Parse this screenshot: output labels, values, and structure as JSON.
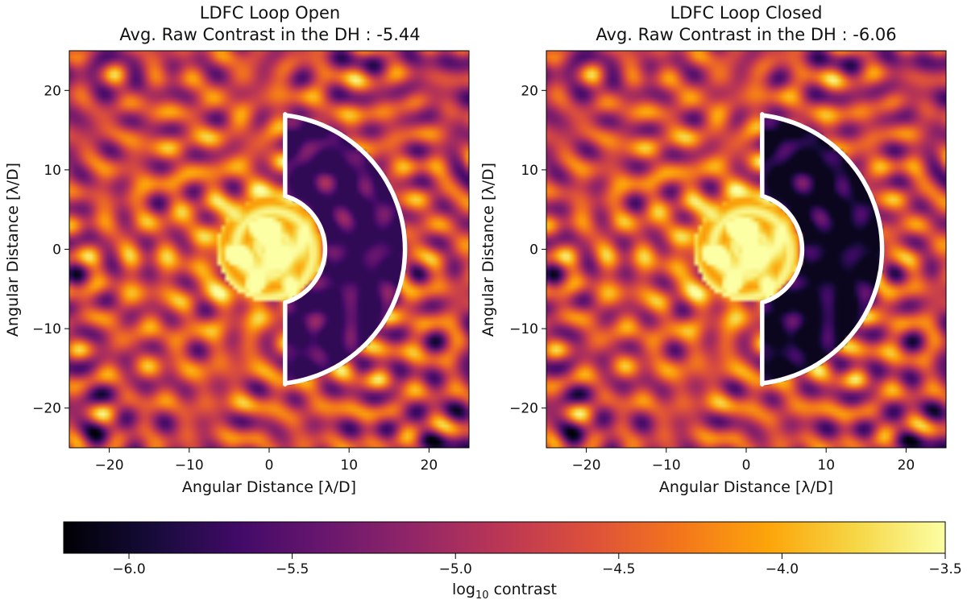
{
  "chart_data": [
    {
      "type": "heatmap",
      "title_line1": "LDFC Loop Open",
      "title_line2": "Avg. Raw Contrast in the DH : -5.44",
      "avg_contrast": -5.44,
      "xlabel": "Angular Distance [λ/D]",
      "ylabel": "Angular Distance [λ/D]",
      "xlim": [
        -25,
        25
      ],
      "ylim": [
        -25,
        25
      ],
      "xticks": [
        -20,
        -10,
        0,
        10,
        20
      ],
      "yticks": [
        -20,
        -10,
        0,
        10,
        20
      ],
      "tick_labels": [
        "−20",
        "−10",
        "0",
        "10",
        "20"
      ],
      "dark_hole": {
        "outer_radius": 17,
        "inner_radius": 7,
        "x_min": 2,
        "y_extent": 17,
        "side": "right"
      },
      "dark_hole_level": 0.16,
      "seed": 11
    },
    {
      "type": "heatmap",
      "title_line1": "LDFC Loop Closed",
      "title_line2": "Avg. Raw Contrast in the DH : -6.06",
      "avg_contrast": -6.06,
      "xlabel": "Angular Distance [λ/D]",
      "ylabel": "Angular Distance [λ/D]",
      "xlim": [
        -25,
        25
      ],
      "ylim": [
        -25,
        25
      ],
      "xticks": [
        -20,
        -10,
        0,
        10,
        20
      ],
      "yticks": [
        -20,
        -10,
        0,
        10,
        20
      ],
      "tick_labels": [
        "−20",
        "−10",
        "0",
        "10",
        "20"
      ],
      "dark_hole": {
        "outer_radius": 17,
        "inner_radius": 7,
        "x_min": 2,
        "y_extent": 17,
        "side": "right"
      },
      "dark_hole_level": 0.05,
      "seed": 11
    }
  ],
  "colorbar": {
    "colormap": "inferno",
    "vmin": -6.2,
    "vmax": -3.5,
    "ticks": [
      -6.0,
      -5.5,
      -5.0,
      -4.5,
      -4.0,
      -3.5
    ],
    "tick_labels": [
      "−6.0",
      "−5.5",
      "−5.0",
      "−4.5",
      "−4.0",
      "−3.5"
    ],
    "label_prefix": "log",
    "label_subscript": "10",
    "label_suffix": " contrast"
  },
  "colors": {
    "dark_hole_outline": "#ffffff",
    "axis": "#000000",
    "background": "#ffffff"
  }
}
